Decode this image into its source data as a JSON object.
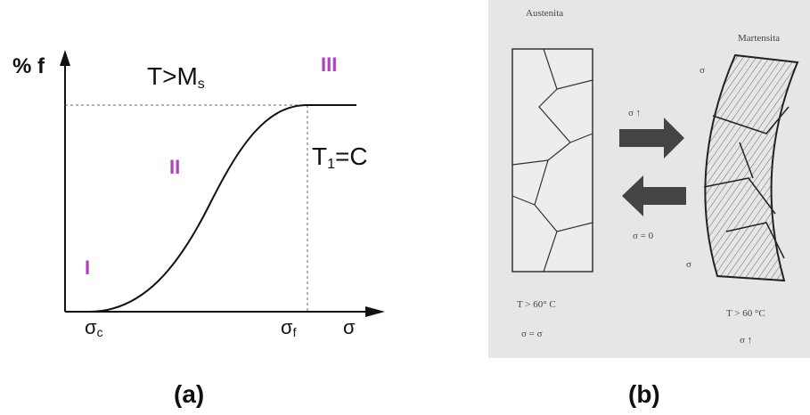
{
  "panel_a": {
    "y_axis_label": "% f",
    "condition": {
      "main": "T>M",
      "sub": "s"
    },
    "regions": [
      "I",
      "II",
      "III"
    ],
    "isotherm": {
      "main": "T",
      "sub": "1",
      "rest": "=C"
    },
    "x_labels": [
      {
        "main": "σ",
        "sub": "c"
      },
      {
        "main": "σ",
        "sub": "f"
      },
      {
        "main": "σ"
      }
    ],
    "caption": "(a)"
  },
  "panel_b": {
    "austenite_label": "Austenita",
    "martensite_label": "Martensita",
    "stress_up": "σ ↑",
    "stress_zero": "σ = 0",
    "martensite_stress_labels": [
      "σ",
      "σ"
    ],
    "left_temperature": "T > 60° C",
    "left_stress": "σ = σ",
    "right_temperature": "T > 60 °C",
    "right_stress": "σ ↑",
    "caption": "(b)"
  }
}
